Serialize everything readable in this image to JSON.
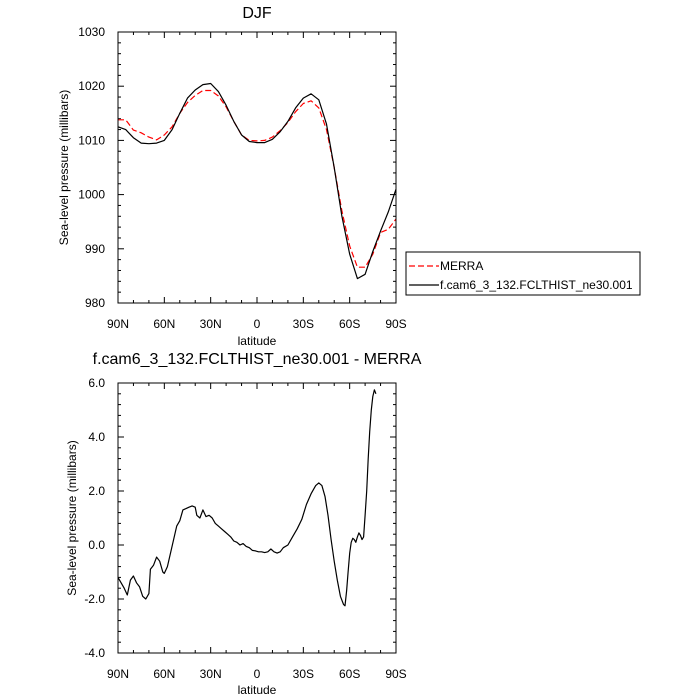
{
  "chart_data": [
    {
      "type": "line",
      "title": "DJF",
      "xlabel": "latitude",
      "ylabel": "Sea-level pressure (millibars)",
      "xlim": [
        90,
        -90
      ],
      "ylim": [
        980,
        1030
      ],
      "x_ticks": [
        90,
        60,
        30,
        0,
        -30,
        -60,
        -90
      ],
      "x_tick_labels": [
        "90N",
        "60N",
        "30N",
        "0",
        "30S",
        "60S",
        "90S"
      ],
      "y_ticks": [
        980,
        990,
        1000,
        1010,
        1020,
        1030
      ],
      "y_tick_labels": [
        "980",
        "990",
        "1000",
        "1010",
        "1020",
        "1030"
      ],
      "grid": false,
      "legend_position": "outside-right",
      "series": [
        {
          "name": "MERRA",
          "color": "#ff0000",
          "dash": true,
          "points": [
            [
              90,
              1013.8
            ],
            [
              85,
              1013.8
            ],
            [
              80,
              1011.9
            ],
            [
              75,
              1011.4
            ],
            [
              70,
              1010.6
            ],
            [
              65,
              1010.1
            ],
            [
              60,
              1011.0
            ],
            [
              55,
              1012.5
            ],
            [
              50,
              1015.0
            ],
            [
              45,
              1017.0
            ],
            [
              40,
              1018.3
            ],
            [
              35,
              1019.2
            ],
            [
              30,
              1019.2
            ],
            [
              25,
              1018.2
            ],
            [
              20,
              1016.2
            ],
            [
              15,
              1013.5
            ],
            [
              10,
              1011.0
            ],
            [
              5,
              1010.0
            ],
            [
              0,
              1009.9
            ],
            [
              -5,
              1010.0
            ],
            [
              -10,
              1010.6
            ],
            [
              -15,
              1011.8
            ],
            [
              -20,
              1013.3
            ],
            [
              -25,
              1015.3
            ],
            [
              -30,
              1016.8
            ],
            [
              -35,
              1017.3
            ],
            [
              -40,
              1016.0
            ],
            [
              -45,
              1012.0
            ],
            [
              -50,
              1005.0
            ],
            [
              -55,
              997.0
            ],
            [
              -60,
              990.5
            ],
            [
              -65,
              986.6
            ],
            [
              -70,
              986.6
            ],
            [
              -75,
              989.0
            ],
            [
              -80,
              993.0
            ],
            [
              -85,
              993.6
            ],
            [
              -90,
              995.5
            ]
          ]
        },
        {
          "name": "f.cam6_3_132.FCLTHIST_ne30.001",
          "color": "#000000",
          "dash": false,
          "points": [
            [
              90,
              1012.5
            ],
            [
              85,
              1012.0
            ],
            [
              80,
              1010.5
            ],
            [
              75,
              1009.5
            ],
            [
              70,
              1009.4
            ],
            [
              65,
              1009.5
            ],
            [
              60,
              1010.0
            ],
            [
              55,
              1012.0
            ],
            [
              50,
              1015.0
            ],
            [
              45,
              1017.8
            ],
            [
              40,
              1019.3
            ],
            [
              35,
              1020.3
            ],
            [
              30,
              1020.5
            ],
            [
              25,
              1019.0
            ],
            [
              20,
              1016.5
            ],
            [
              15,
              1013.5
            ],
            [
              10,
              1011.0
            ],
            [
              5,
              1009.8
            ],
            [
              0,
              1009.6
            ],
            [
              -5,
              1009.6
            ],
            [
              -10,
              1010.2
            ],
            [
              -15,
              1011.6
            ],
            [
              -20,
              1013.5
            ],
            [
              -25,
              1016.0
            ],
            [
              -30,
              1017.8
            ],
            [
              -35,
              1018.6
            ],
            [
              -40,
              1017.5
            ],
            [
              -45,
              1013.0
            ],
            [
              -50,
              1005.0
            ],
            [
              -55,
              996.0
            ],
            [
              -60,
              989.0
            ],
            [
              -65,
              984.5
            ],
            [
              -70,
              985.3
            ],
            [
              -75,
              989.5
            ],
            [
              -80,
              993.3
            ],
            [
              -85,
              996.8
            ],
            [
              -90,
              1001.0
            ]
          ]
        }
      ]
    },
    {
      "type": "line",
      "title": "f.cam6_3_132.FCLTHIST_ne30.001 - MERRA",
      "xlabel": "latitude",
      "ylabel": "Sea-level pressure (millibars)",
      "xlim": [
        90,
        -90
      ],
      "ylim": [
        -4,
        6
      ],
      "x_ticks": [
        90,
        60,
        30,
        0,
        -30,
        -60,
        -90
      ],
      "x_tick_labels": [
        "90N",
        "60N",
        "30N",
        "0",
        "30S",
        "60S",
        "90S"
      ],
      "y_ticks": [
        -4,
        -2,
        0,
        2,
        4,
        6
      ],
      "y_tick_labels": [
        "-4.0",
        "-2.0",
        "0.0",
        "2.0",
        "4.0",
        "6.0"
      ],
      "grid": false,
      "series": [
        {
          "color": "#000000",
          "dash": false,
          "points": [
            [
              90,
              -1.2
            ],
            [
              88,
              -1.4
            ],
            [
              86,
              -1.6
            ],
            [
              84,
              -1.85
            ],
            [
              82,
              -1.3
            ],
            [
              80,
              -1.15
            ],
            [
              78,
              -1.4
            ],
            [
              76,
              -1.55
            ],
            [
              74,
              -1.9
            ],
            [
              72,
              -2.0
            ],
            [
              70,
              -1.8
            ],
            [
              69,
              -0.9
            ],
            [
              67,
              -0.75
            ],
            [
              65,
              -0.45
            ],
            [
              63,
              -0.6
            ],
            [
              61,
              -1.0
            ],
            [
              60,
              -1.05
            ],
            [
              58,
              -0.8
            ],
            [
              56,
              -0.3
            ],
            [
              54,
              0.2
            ],
            [
              52,
              0.7
            ],
            [
              50,
              0.9
            ],
            [
              48,
              1.3
            ],
            [
              46,
              1.35
            ],
            [
              44,
              1.4
            ],
            [
              42,
              1.45
            ],
            [
              40,
              1.4
            ],
            [
              39,
              1.1
            ],
            [
              37,
              1.0
            ],
            [
              35,
              1.3
            ],
            [
              33,
              1.05
            ],
            [
              31,
              1.1
            ],
            [
              29,
              1.0
            ],
            [
              27,
              0.8
            ],
            [
              25,
              0.7
            ],
            [
              23,
              0.6
            ],
            [
              21,
              0.5
            ],
            [
              19,
              0.4
            ],
            [
              17,
              0.3
            ],
            [
              15,
              0.15
            ],
            [
              13,
              0.1
            ],
            [
              11,
              0.0
            ],
            [
              9,
              0.05
            ],
            [
              7,
              -0.05
            ],
            [
              5,
              -0.1
            ],
            [
              3,
              -0.2
            ],
            [
              1,
              -0.22
            ],
            [
              -1,
              -0.25
            ],
            [
              -3,
              -0.25
            ],
            [
              -5,
              -0.28
            ],
            [
              -7,
              -0.25
            ],
            [
              -9,
              -0.15
            ],
            [
              -11,
              -0.25
            ],
            [
              -13,
              -0.3
            ],
            [
              -15,
              -0.25
            ],
            [
              -17,
              -0.1
            ],
            [
              -20,
              0.0
            ],
            [
              -23,
              0.3
            ],
            [
              -26,
              0.6
            ],
            [
              -29,
              0.95
            ],
            [
              -32,
              1.5
            ],
            [
              -35,
              1.9
            ],
            [
              -38,
              2.2
            ],
            [
              -40,
              2.3
            ],
            [
              -42,
              2.2
            ],
            [
              -44,
              1.8
            ],
            [
              -46,
              1.1
            ],
            [
              -48,
              0.2
            ],
            [
              -50,
              -0.6
            ],
            [
              -52,
              -1.3
            ],
            [
              -54,
              -1.9
            ],
            [
              -56,
              -2.2
            ],
            [
              -57,
              -2.25
            ],
            [
              -58,
              -1.7
            ],
            [
              -59,
              -1.0
            ],
            [
              -60,
              -0.3
            ],
            [
              -61,
              0.1
            ],
            [
              -62,
              0.25
            ],
            [
              -63,
              0.2
            ],
            [
              -64,
              0.1
            ],
            [
              -65,
              0.3
            ],
            [
              -66,
              0.45
            ],
            [
              -67,
              0.35
            ],
            [
              -68,
              0.2
            ],
            [
              -69,
              0.3
            ],
            [
              -70,
              1.1
            ],
            [
              -71,
              2.0
            ],
            [
              -72,
              3.2
            ],
            [
              -73,
              4.2
            ],
            [
              -74,
              5.0
            ],
            [
              -75,
              5.5
            ],
            [
              -76,
              5.75
            ],
            [
              -77,
              5.6
            ]
          ]
        }
      ]
    }
  ]
}
